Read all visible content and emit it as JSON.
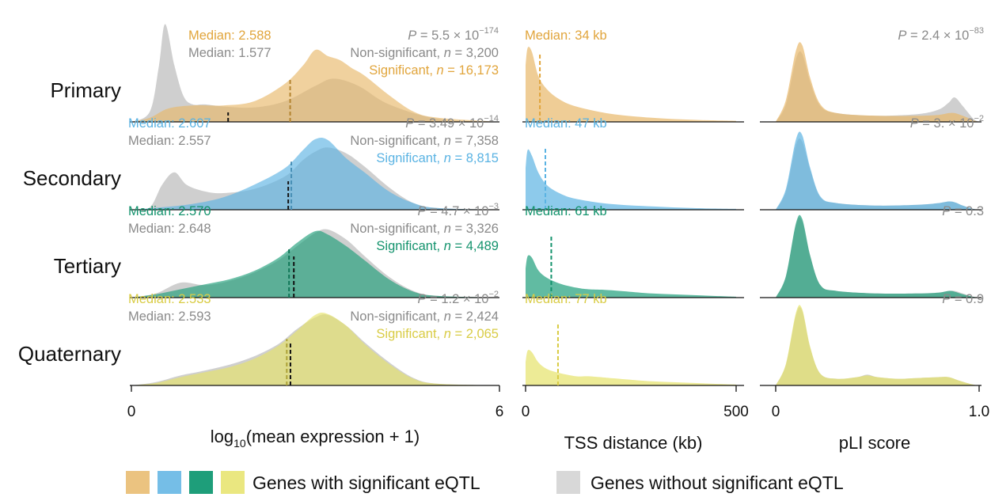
{
  "figure": {
    "legend": {
      "significant_label": "Genes with significant eQTL",
      "nonsignificant_label": "Genes without significant eQTL"
    },
    "colors": {
      "Primary": "#e8b86a",
      "Secondary": "#5db3e3",
      "Tertiary": "#1e9e7a",
      "Quaternary": "#e6e36a",
      "nonsignificant": "#c7c7c7",
      "text_primary": "#e1a53c",
      "text_secondary": "#5ab3e3",
      "text_tertiary": "#14936d",
      "text_quaternary": "#d9cc45",
      "text_gray": "#8a8a8a"
    }
  },
  "chart_data": [
    {
      "type": "area",
      "panel": "expression",
      "xlabel_pre": "log",
      "xlabel_sub": "10",
      "xlabel_post": "(mean expression + 1)",
      "xlim": [
        0,
        6
      ],
      "xticks": [
        "0",
        "6"
      ],
      "rows": [
        {
          "name": "Primary",
          "p_value_text": "P = 5.5 × 10",
          "p_exp": "−174",
          "median_sig_text": "Median: 2.588",
          "median_nonsig_text": "Median: 1.577",
          "median_sig": 2.588,
          "median_nonsig": 1.577,
          "n_nonsig_text": "Non-significant, n = 3,200",
          "n_sig_text": "Significant, n = 16,173",
          "series": [
            {
              "name": "Non-significant",
              "x": [
                0,
                0.3,
                0.45,
                0.55,
                0.7,
                0.85,
                1.0,
                1.2,
                1.5,
                2.0,
                2.5,
                3.0,
                3.3,
                3.7,
                4.2,
                5.0,
                6.0
              ],
              "y": [
                0,
                0.1,
                0.55,
                0.95,
                0.55,
                0.25,
                0.17,
                0.17,
                0.15,
                0.14,
                0.2,
                0.35,
                0.42,
                0.35,
                0.17,
                0.03,
                0
              ]
            },
            {
              "name": "Significant",
              "x": [
                0,
                0.3,
                0.6,
                1.0,
                1.5,
                2.0,
                2.5,
                2.8,
                3.0,
                3.2,
                3.4,
                3.6,
                3.8,
                4.2,
                4.6,
                5.0,
                6.0
              ],
              "y": [
                0,
                0.04,
                0.13,
                0.16,
                0.16,
                0.2,
                0.37,
                0.55,
                0.7,
                0.64,
                0.6,
                0.52,
                0.45,
                0.26,
                0.1,
                0.04,
                0
              ]
            }
          ]
        },
        {
          "name": "Secondary",
          "p_value_text": "P = 3.49 × 10",
          "p_exp": "−14",
          "median_sig_text": "Median: 2.607",
          "median_nonsig_text": "Median: 2.557",
          "median_sig": 2.607,
          "median_nonsig": 2.557,
          "n_nonsig_text": "Non-significant, n = 7,358",
          "n_sig_text": "Significant, n = 8,815",
          "series": [
            {
              "name": "Non-significant",
              "x": [
                0,
                0.3,
                0.5,
                0.7,
                0.9,
                1.2,
                1.5,
                2.0,
                2.5,
                2.8,
                3.0,
                3.2,
                3.5,
                3.8,
                4.2,
                4.6,
                5.0,
                6.0
              ],
              "y": [
                0,
                0.03,
                0.3,
                0.45,
                0.3,
                0.22,
                0.2,
                0.25,
                0.4,
                0.6,
                0.7,
                0.75,
                0.68,
                0.52,
                0.27,
                0.08,
                0.02,
                0
              ]
            },
            {
              "name": "Significant",
              "x": [
                0,
                0.5,
                1.0,
                1.5,
                2.0,
                2.5,
                2.8,
                3.0,
                3.2,
                3.5,
                3.8,
                4.2,
                4.6,
                5.0,
                6.0
              ],
              "y": [
                0,
                0.03,
                0.07,
                0.15,
                0.3,
                0.5,
                0.72,
                0.85,
                0.84,
                0.62,
                0.45,
                0.22,
                0.08,
                0.02,
                0
              ]
            }
          ]
        },
        {
          "name": "Tertiary",
          "p_value_text": "P = 4.7 × 10",
          "p_exp": "−3",
          "median_sig_text": "Median: 2.570",
          "median_nonsig_text": "Median: 2.648",
          "median_sig": 2.57,
          "median_nonsig": 2.648,
          "n_nonsig_text": "Non-significant, n = 3,326",
          "n_sig_text": "Significant, n = 4,489",
          "series": [
            {
              "name": "Non-significant",
              "x": [
                0,
                0.4,
                0.8,
                1.2,
                1.6,
                2.0,
                2.4,
                2.7,
                3.0,
                3.2,
                3.5,
                3.8,
                4.2,
                4.6,
                5.0,
                6.0
              ],
              "y": [
                0,
                0.05,
                0.18,
                0.15,
                0.2,
                0.3,
                0.45,
                0.62,
                0.78,
                0.82,
                0.7,
                0.5,
                0.25,
                0.08,
                0.02,
                0
              ]
            },
            {
              "name": "Significant",
              "x": [
                0,
                0.4,
                0.8,
                1.2,
                1.6,
                2.0,
                2.4,
                2.7,
                3.0,
                3.2,
                3.5,
                3.8,
                4.2,
                4.6,
                5.0,
                6.0
              ],
              "y": [
                0,
                0.04,
                0.1,
                0.16,
                0.22,
                0.32,
                0.48,
                0.66,
                0.8,
                0.76,
                0.62,
                0.45,
                0.22,
                0.07,
                0.02,
                0
              ]
            }
          ]
        },
        {
          "name": "Quaternary",
          "p_value_text": "P = 1.2 × 10",
          "p_exp": "−2",
          "median_sig_text": "Median: 2.533",
          "median_nonsig_text": "Median: 2.593",
          "median_sig": 2.533,
          "median_nonsig": 2.593,
          "n_nonsig_text": "Non-significant, n = 2,424",
          "n_sig_text": "Significant, n = 2,065",
          "series": [
            {
              "name": "Non-significant",
              "x": [
                0,
                0.4,
                0.8,
                1.2,
                1.6,
                2.0,
                2.4,
                2.7,
                3.0,
                3.2,
                3.5,
                3.8,
                4.2,
                4.6,
                5.0,
                6.0
              ],
              "y": [
                0,
                0.04,
                0.12,
                0.18,
                0.25,
                0.35,
                0.5,
                0.68,
                0.82,
                0.85,
                0.72,
                0.52,
                0.28,
                0.09,
                0.02,
                0
              ]
            },
            {
              "name": "Significant",
              "x": [
                0,
                0.4,
                0.8,
                1.2,
                1.6,
                2.0,
                2.4,
                2.7,
                3.0,
                3.2,
                3.5,
                3.8,
                4.2,
                4.6,
                5.0,
                6.0
              ],
              "y": [
                0,
                0.03,
                0.1,
                0.16,
                0.22,
                0.32,
                0.48,
                0.66,
                0.85,
                0.86,
                0.72,
                0.5,
                0.26,
                0.08,
                0.02,
                0
              ]
            }
          ]
        }
      ]
    },
    {
      "type": "area",
      "panel": "tss",
      "xlabel": "TSS distance (kb)",
      "xlim": [
        0,
        500
      ],
      "xticks": [
        "0",
        "500"
      ],
      "rows": [
        {
          "name": "Primary",
          "median_text": "Median: 34 kb",
          "median": 34,
          "series": [
            {
              "name": "Significant",
              "x": [
                0,
                5,
                15,
                30,
                50,
                80,
                120,
                200,
                300,
                400,
                500
              ],
              "y": [
                0.55,
                0.72,
                0.68,
                0.45,
                0.32,
                0.22,
                0.15,
                0.08,
                0.04,
                0.02,
                0.01
              ]
            }
          ]
        },
        {
          "name": "Secondary",
          "median_text": "Median: 47 kb",
          "median": 47,
          "series": [
            {
              "name": "Significant",
              "x": [
                0,
                5,
                15,
                30,
                50,
                80,
                120,
                200,
                300,
                400,
                500
              ],
              "y": [
                0.5,
                0.72,
                0.65,
                0.45,
                0.3,
                0.2,
                0.13,
                0.07,
                0.04,
                0.02,
                0.01
              ]
            }
          ]
        },
        {
          "name": "Tertiary",
          "median_text": "Median: 61 kb",
          "median": 61,
          "series": [
            {
              "name": "Significant",
              "x": [
                0,
                5,
                15,
                30,
                50,
                80,
                120,
                150,
                200,
                300,
                400,
                500
              ],
              "y": [
                0.35,
                0.5,
                0.48,
                0.33,
                0.24,
                0.17,
                0.12,
                0.1,
                0.09,
                0.05,
                0.03,
                0.01
              ]
            }
          ]
        },
        {
          "name": "Quaternary",
          "median_text": "Median: 77 kb",
          "median": 77,
          "series": [
            {
              "name": "Significant",
              "x": [
                0,
                5,
                15,
                30,
                50,
                80,
                120,
                150,
                200,
                300,
                400,
                500
              ],
              "y": [
                0.28,
                0.42,
                0.4,
                0.28,
                0.2,
                0.15,
                0.11,
                0.11,
                0.09,
                0.05,
                0.03,
                0.01
              ]
            }
          ]
        }
      ]
    },
    {
      "type": "area",
      "panel": "pli",
      "xlabel": "pLI score",
      "xlim": [
        0,
        1
      ],
      "xticks": [
        "0",
        "1.0"
      ],
      "rows": [
        {
          "name": "Primary",
          "p_value_text": "P = 2.4 × 10",
          "p_exp": "−83",
          "series": [
            {
              "name": "Non-significant",
              "x": [
                0,
                0.05,
                0.1,
                0.13,
                0.17,
                0.22,
                0.3,
                0.5,
                0.7,
                0.8,
                0.85,
                0.88,
                0.92,
                0.97,
                1.0
              ],
              "y": [
                0,
                0.2,
                0.72,
                0.78,
                0.45,
                0.18,
                0.1,
                0.07,
                0.09,
                0.14,
                0.22,
                0.28,
                0.18,
                0.04,
                0
              ]
            },
            {
              "name": "Significant",
              "x": [
                0,
                0.05,
                0.1,
                0.13,
                0.17,
                0.22,
                0.3,
                0.5,
                0.7,
                0.8,
                0.85,
                0.88,
                0.92,
                0.97,
                1.0
              ],
              "y": [
                0,
                0.25,
                0.82,
                0.88,
                0.5,
                0.2,
                0.1,
                0.07,
                0.07,
                0.08,
                0.1,
                0.1,
                0.07,
                0.02,
                0
              ]
            }
          ]
        },
        {
          "name": "Secondary",
          "p_value_text": "P = 3. × 10",
          "p_exp": "−2",
          "series": [
            {
              "name": "Non-significant",
              "x": [
                0,
                0.05,
                0.1,
                0.13,
                0.17,
                0.22,
                0.3,
                0.5,
                0.7,
                0.8,
                0.85,
                0.88,
                0.92,
                0.97,
                1.0
              ],
              "y": [
                0,
                0.22,
                0.78,
                0.82,
                0.48,
                0.15,
                0.08,
                0.05,
                0.06,
                0.08,
                0.1,
                0.09,
                0.05,
                0.01,
                0
              ]
            },
            {
              "name": "Significant",
              "x": [
                0,
                0.05,
                0.1,
                0.13,
                0.17,
                0.22,
                0.3,
                0.5,
                0.7,
                0.8,
                0.85,
                0.88,
                0.92,
                0.97,
                1.0
              ],
              "y": [
                0,
                0.25,
                0.85,
                0.9,
                0.5,
                0.16,
                0.08,
                0.05,
                0.06,
                0.08,
                0.1,
                0.09,
                0.05,
                0.01,
                0
              ]
            }
          ]
        },
        {
          "name": "Tertiary",
          "p_value_text": "P = 0.3",
          "p_exp": "",
          "series": [
            {
              "name": "Non-significant",
              "x": [
                0,
                0.05,
                0.1,
                0.13,
                0.17,
                0.22,
                0.3,
                0.5,
                0.7,
                0.8,
                0.85,
                0.88,
                0.92,
                0.97,
                1.0
              ],
              "y": [
                0,
                0.25,
                0.88,
                0.92,
                0.5,
                0.15,
                0.08,
                0.05,
                0.05,
                0.06,
                0.08,
                0.08,
                0.05,
                0.01,
                0
              ]
            },
            {
              "name": "Significant",
              "x": [
                0,
                0.05,
                0.1,
                0.13,
                0.17,
                0.22,
                0.3,
                0.5,
                0.7,
                0.8,
                0.85,
                0.88,
                0.92,
                0.97,
                1.0
              ],
              "y": [
                0,
                0.26,
                0.9,
                0.95,
                0.5,
                0.15,
                0.08,
                0.05,
                0.05,
                0.06,
                0.08,
                0.07,
                0.04,
                0.01,
                0
              ]
            }
          ]
        },
        {
          "name": "Quaternary",
          "p_value_text": "P = 0.9",
          "p_exp": "",
          "series": [
            {
              "name": "Non-significant",
              "x": [
                0,
                0.05,
                0.1,
                0.13,
                0.17,
                0.22,
                0.3,
                0.4,
                0.45,
                0.5,
                0.6,
                0.7,
                0.8,
                0.85,
                0.9,
                0.97,
                1.0
              ],
              "y": [
                0,
                0.25,
                0.85,
                0.9,
                0.45,
                0.14,
                0.08,
                0.1,
                0.13,
                0.1,
                0.08,
                0.09,
                0.1,
                0.1,
                0.06,
                0.01,
                0
              ]
            },
            {
              "name": "Significant",
              "x": [
                0,
                0.05,
                0.1,
                0.13,
                0.17,
                0.22,
                0.3,
                0.4,
                0.45,
                0.5,
                0.6,
                0.7,
                0.8,
                0.85,
                0.9,
                0.97,
                1.0
              ],
              "y": [
                0,
                0.26,
                0.88,
                0.92,
                0.46,
                0.14,
                0.08,
                0.1,
                0.12,
                0.1,
                0.08,
                0.09,
                0.1,
                0.1,
                0.06,
                0.01,
                0
              ]
            }
          ]
        }
      ]
    }
  ]
}
